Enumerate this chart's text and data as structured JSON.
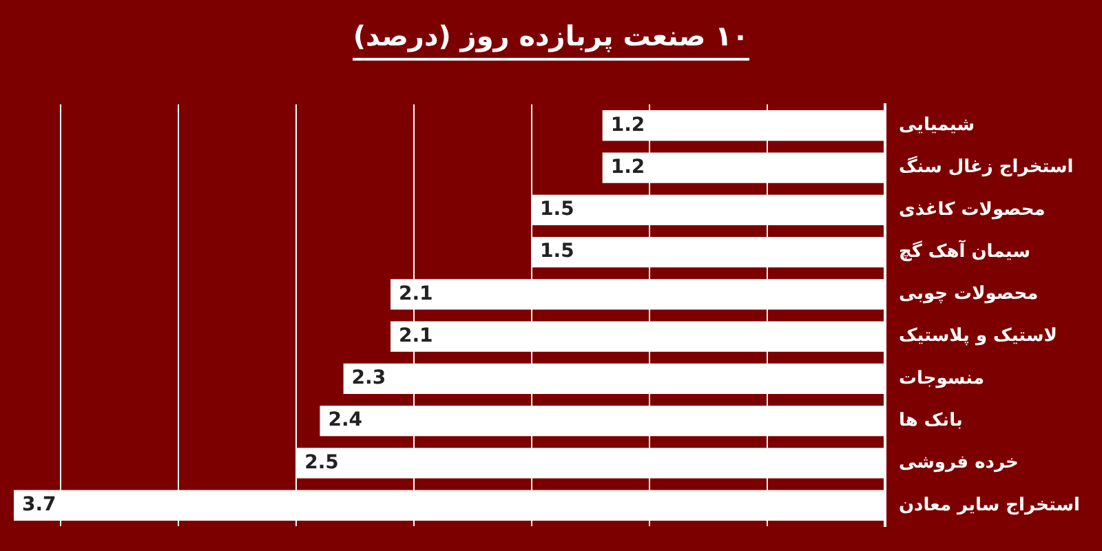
{
  "chart_data": {
    "type": "bar",
    "orientation": "horizontal",
    "title": "۱۰ صنعت پربازده روز (درصد)",
    "categories": [
      "شیمیایی",
      "استخراج زغال سنگ",
      "محصولات کاغذی",
      "سیمان آهک گچ",
      "محصولات چوبی",
      "لاستیک و پلاستیک",
      "منسوجات",
      "بانک ها",
      "خرده فروشی",
      "استخراج سایر معادن"
    ],
    "values": [
      1.2,
      1.2,
      1.5,
      1.5,
      2.1,
      2.1,
      2.3,
      2.4,
      2.5,
      3.7
    ],
    "color": "#ffffff",
    "xticks": [
      {
        "value": 0.5,
        "label": null
      },
      {
        "value": 1,
        "label": null
      },
      {
        "value": 1.5,
        "label": null
      },
      {
        "value": 2,
        "label": null
      },
      {
        "value": 2.5,
        "label": null
      },
      {
        "value": 3,
        "label": null
      },
      {
        "value": 3.5,
        "label": null
      }
    ],
    "grid": "x",
    "tick_labels": "y",
    "data_labels": true
  }
}
